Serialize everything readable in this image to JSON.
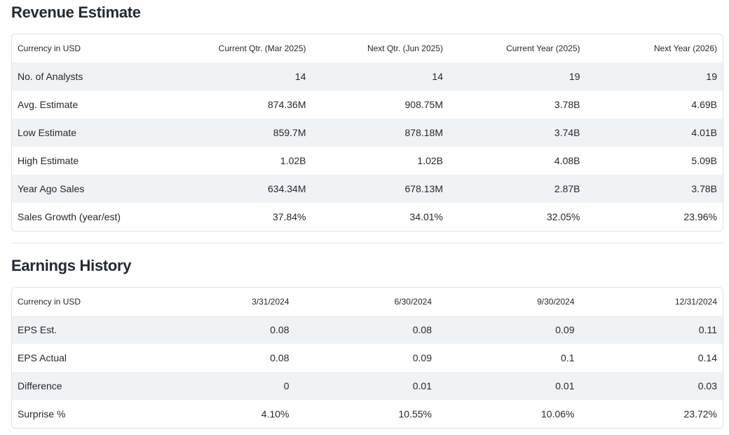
{
  "revenue_estimate": {
    "title": "Revenue Estimate",
    "columns": [
      "Currency in USD",
      "Current Qtr. (Mar 2025)",
      "Next Qtr. (Jun 2025)",
      "Current Year (2025)",
      "Next Year (2026)"
    ],
    "rows": [
      [
        "No. of Analysts",
        "14",
        "14",
        "19",
        "19"
      ],
      [
        "Avg. Estimate",
        "874.36M",
        "908.75M",
        "3.78B",
        "4.69B"
      ],
      [
        "Low Estimate",
        "859.7M",
        "878.18M",
        "3.74B",
        "4.01B"
      ],
      [
        "High Estimate",
        "1.02B",
        "1.02B",
        "4.08B",
        "5.09B"
      ],
      [
        "Year Ago Sales",
        "634.34M",
        "678.13M",
        "2.87B",
        "3.78B"
      ],
      [
        "Sales Growth (year/est)",
        "37.84%",
        "34.01%",
        "32.05%",
        "23.96%"
      ]
    ]
  },
  "earnings_history": {
    "title": "Earnings History",
    "columns": [
      "Currency in USD",
      "3/31/2024",
      "6/30/2024",
      "9/30/2024",
      "12/31/2024"
    ],
    "rows": [
      [
        "EPS Est.",
        "0.08",
        "0.08",
        "0.09",
        "0.11"
      ],
      [
        "EPS Actual",
        "0.08",
        "0.09",
        "0.1",
        "0.14"
      ],
      [
        "Difference",
        "0",
        "0.01",
        "0.01",
        "0.03"
      ],
      [
        "Surprise %",
        "4.10%",
        "10.55%",
        "10.06%",
        "23.72%"
      ]
    ]
  }
}
